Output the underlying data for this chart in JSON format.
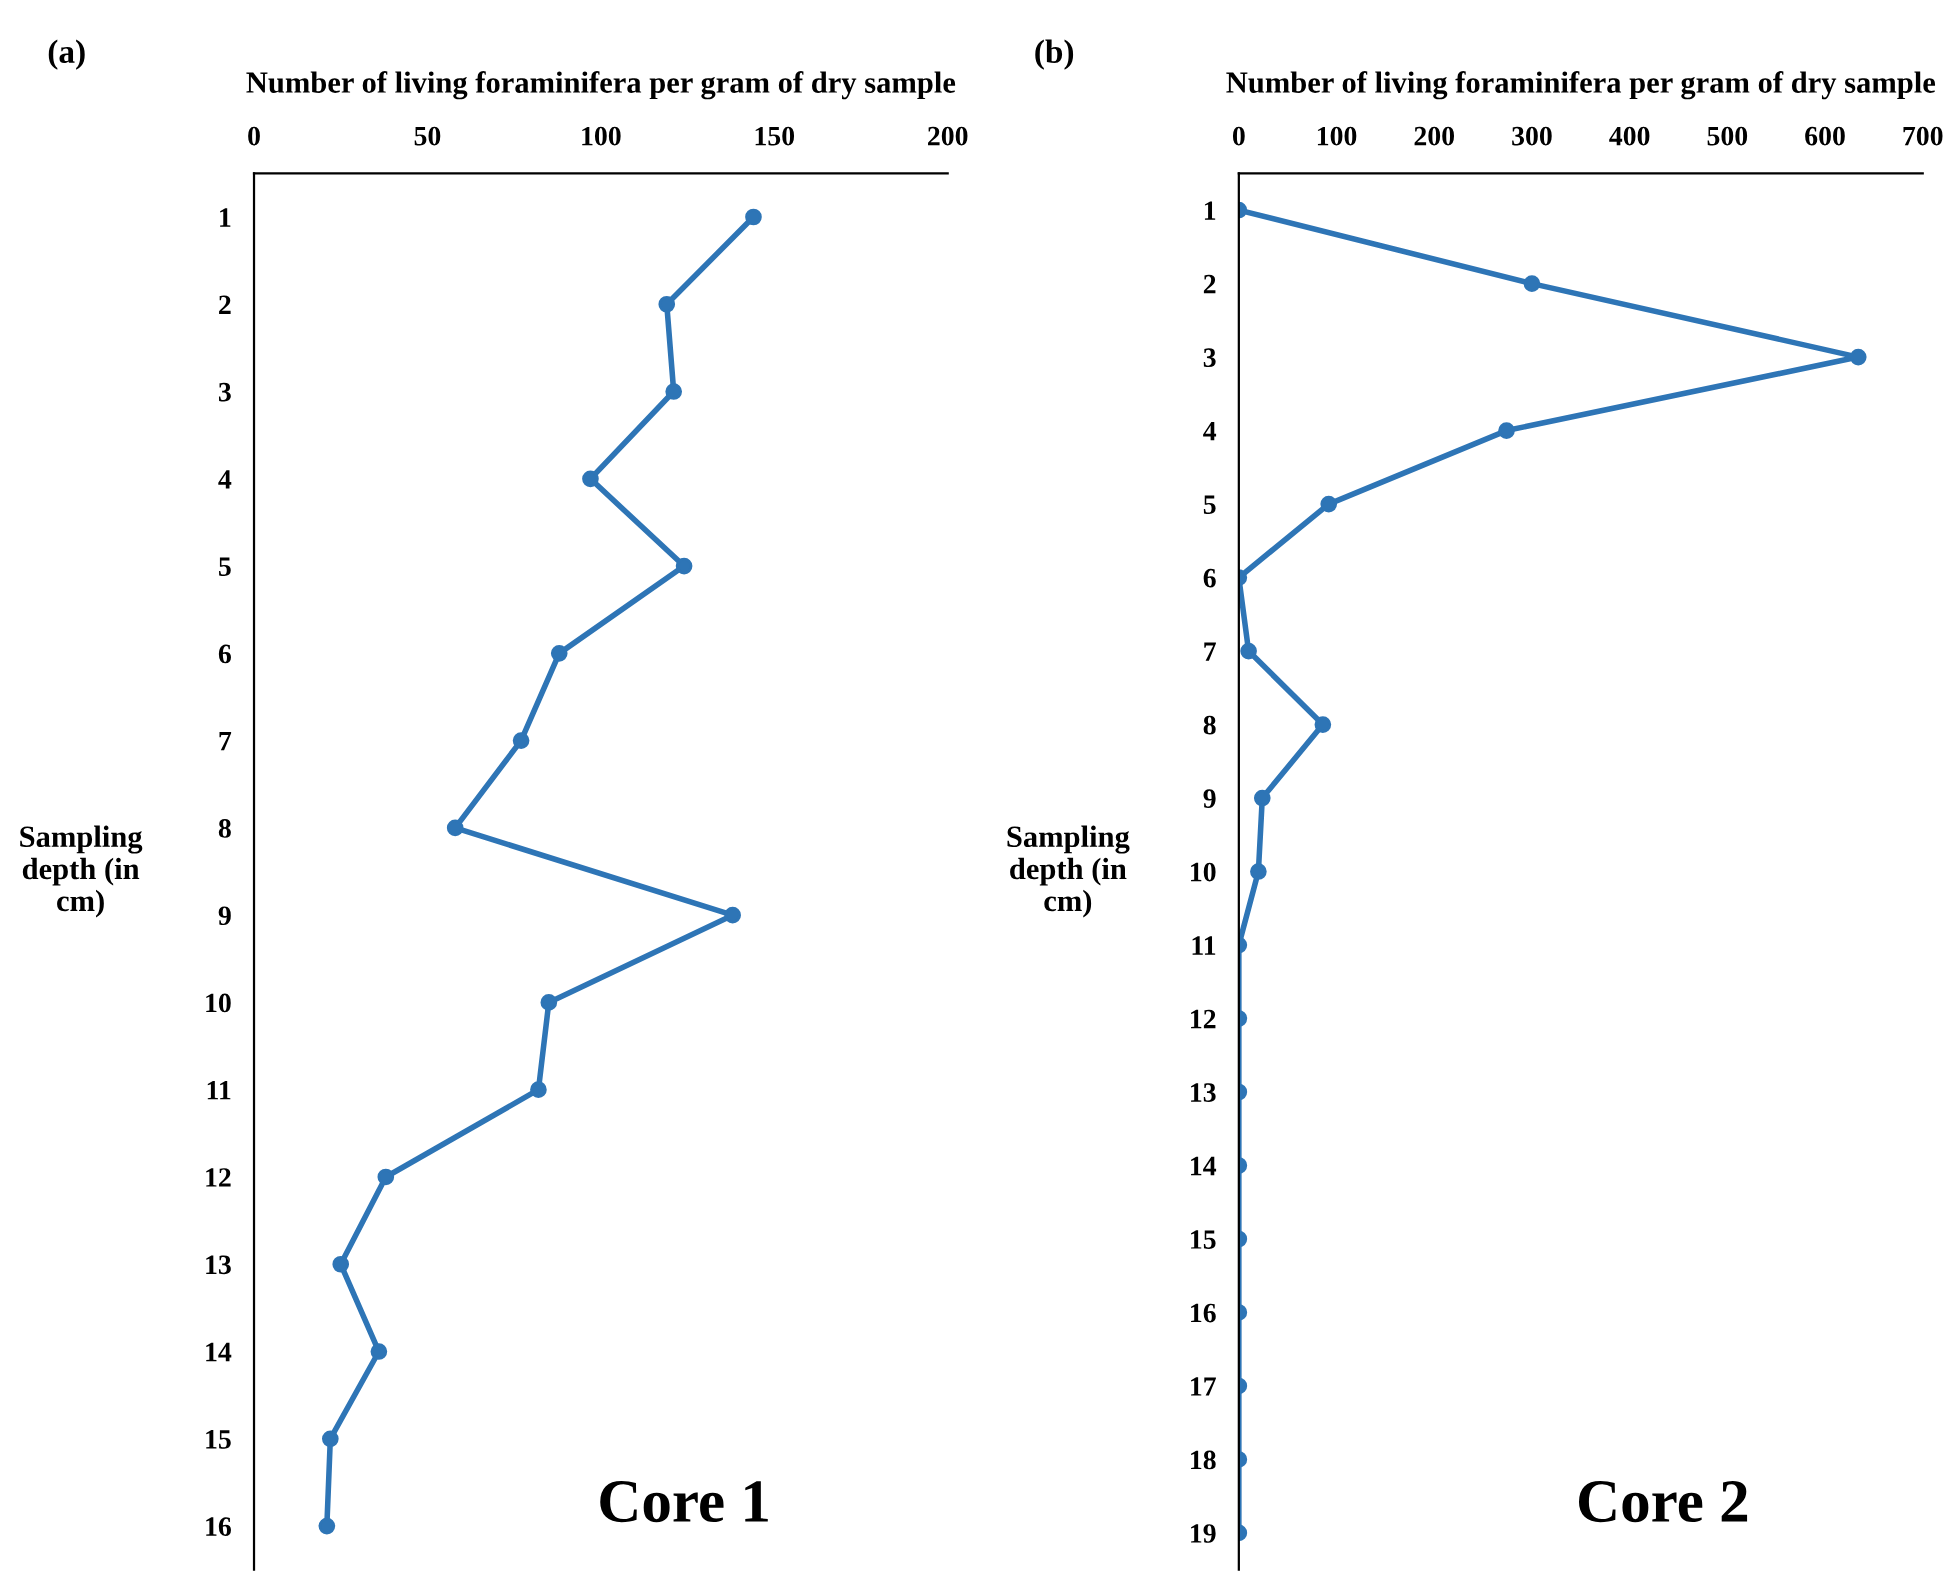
{
  "chart_data": [
    {
      "type": "line",
      "title": "(a)",
      "xlabel": "Number of living foraminifera per gram of dry sample",
      "ylabel": "Sampling depth (in cm)",
      "orientation": "horizontal",
      "categories": [
        "1",
        "2",
        "3",
        "4",
        "5",
        "6",
        "7",
        "8",
        "9",
        "10",
        "11",
        "12",
        "13",
        "14",
        "15",
        "16"
      ],
      "series": [
        {
          "color": "#2e75b6",
          "values": [
            144,
            119,
            121,
            97,
            124,
            88,
            77,
            58,
            138,
            85,
            82,
            38,
            25,
            36,
            22,
            21
          ]
        }
      ],
      "xlim": [
        0,
        200
      ],
      "xticks": [
        0,
        50,
        100,
        150,
        200
      ],
      "grid": false,
      "legend": false,
      "marker": "circle",
      "line_style": "solid",
      "annotations": [
        "Core 1"
      ]
    },
    {
      "type": "line",
      "title": "(b)",
      "xlabel": "Number of living foraminifera per gram of dry sample",
      "ylabel": "Sampling depth (in cm)",
      "orientation": "horizontal",
      "categories": [
        "1",
        "2",
        "3",
        "4",
        "5",
        "6",
        "7",
        "8",
        "9",
        "10",
        "11",
        "12",
        "13",
        "14",
        "15",
        "16",
        "17",
        "18",
        "19"
      ],
      "series": [
        {
          "color": "#2e75b6",
          "values": [
            0,
            300,
            634,
            274,
            92,
            0,
            10,
            86,
            24,
            20,
            0,
            0,
            0,
            0,
            0,
            0,
            0,
            0,
            0
          ]
        }
      ],
      "xlim": [
        0,
        700
      ],
      "xticks": [
        0,
        100,
        200,
        300,
        400,
        500,
        600,
        700
      ],
      "grid": false,
      "legend": false,
      "marker": "circle",
      "line_style": "solid",
      "annotations": [
        "Core 2"
      ]
    }
  ]
}
